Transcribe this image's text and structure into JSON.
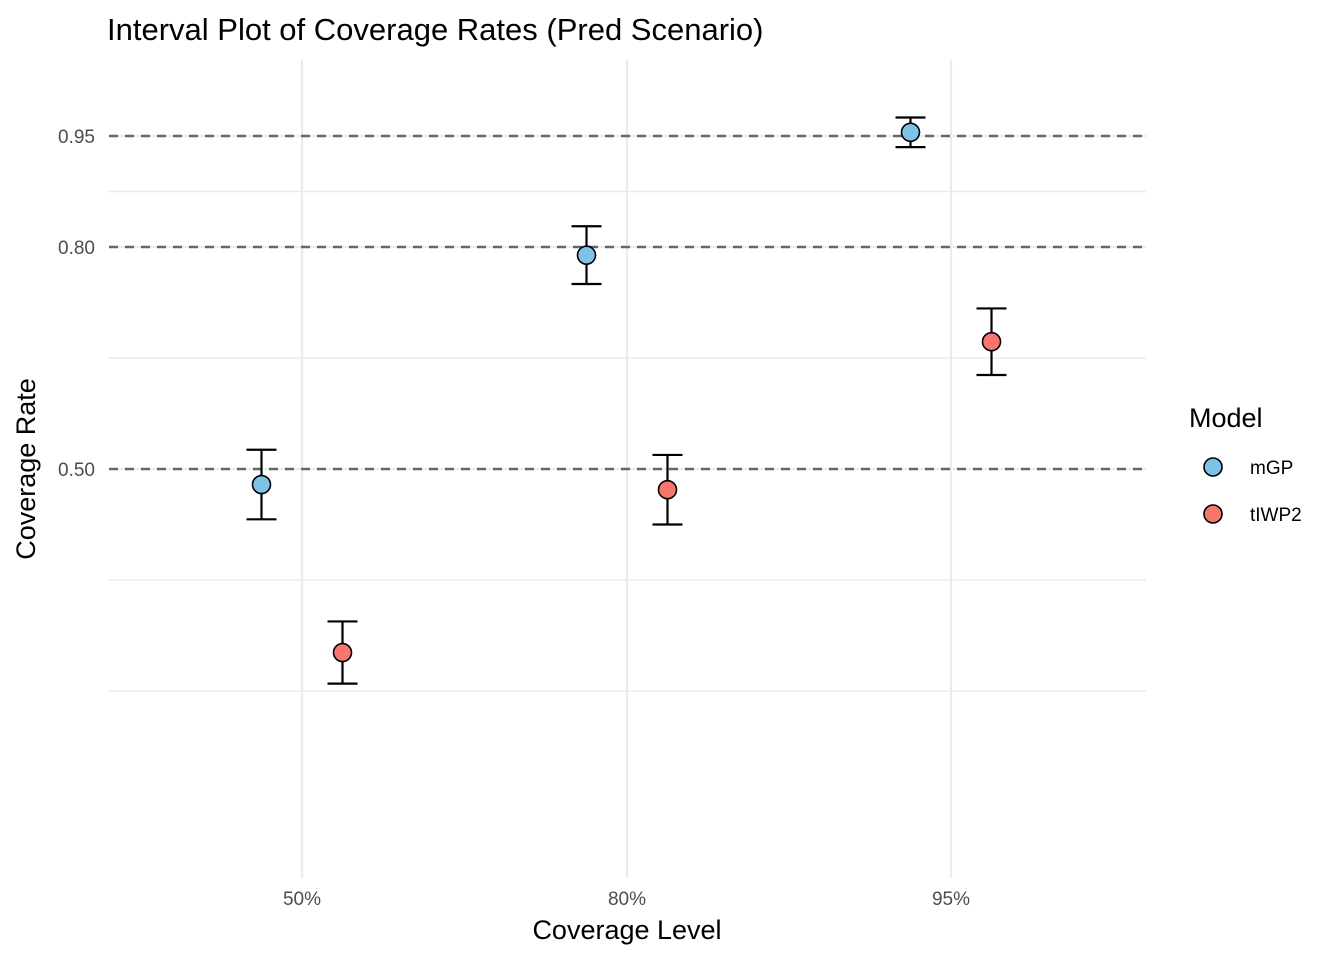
{
  "chart_data": {
    "type": "scatter",
    "title": "Interval Plot of Coverage Rates (Pred Scenario)",
    "xlabel": "Coverage Level",
    "ylabel": "Coverage Rate",
    "categories": [
      "50%",
      "80%",
      "95%"
    ],
    "y_ticks": [
      {
        "value": 0.95,
        "label": "0.95"
      },
      {
        "value": 0.8,
        "label": "0.80"
      },
      {
        "value": 0.5,
        "label": "0.50"
      }
    ],
    "y_minor_gridlines": [
      0.875,
      0.65,
      0.35,
      0.2
    ],
    "ylim": [
      -0.05,
      1.1
    ],
    "reference_lines": [
      0.5,
      0.8,
      0.95
    ],
    "grid": true,
    "legend": {
      "title": "Model",
      "position": "right"
    },
    "series": [
      {
        "name": "mGP",
        "color": "#7EC3E6",
        "points": [
          {
            "category": "50%",
            "y": 0.479,
            "lower": 0.432,
            "upper": 0.526
          },
          {
            "category": "80%",
            "y": 0.789,
            "lower": 0.75,
            "upper": 0.828
          },
          {
            "category": "95%",
            "y": 0.955,
            "lower": 0.935,
            "upper": 0.975
          }
        ]
      },
      {
        "name": "tIWP2",
        "color": "#F8766D",
        "points": [
          {
            "category": "50%",
            "y": 0.252,
            "lower": 0.21,
            "upper": 0.294
          },
          {
            "category": "80%",
            "y": 0.472,
            "lower": 0.425,
            "upper": 0.519
          },
          {
            "category": "95%",
            "y": 0.672,
            "lower": 0.627,
            "upper": 0.717
          }
        ]
      }
    ]
  }
}
